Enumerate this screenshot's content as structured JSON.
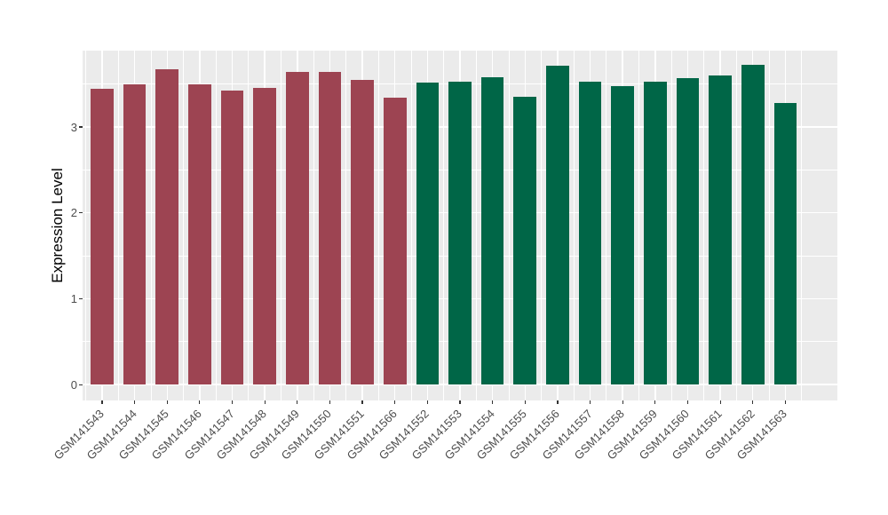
{
  "style": {
    "background": "#FFFFFF",
    "panel_background": "#EBEBEB",
    "grid_color": "#FFFFFF",
    "tick_mark_color": "#333333",
    "tick_label_color": "#4D4D4D",
    "axis_title_color": "#000000"
  },
  "chart_data": {
    "type": "bar",
    "title": "",
    "xlabel": "",
    "ylabel": "Expression Level",
    "ylim": [
      -0.185,
      3.89
    ],
    "yticks": [
      0,
      1,
      2,
      3
    ],
    "minor_yticks": [
      0.5,
      1.5,
      2.5,
      3.5
    ],
    "grid": "on",
    "legend_position": "none",
    "bar_width_fraction": 0.7,
    "categories": [
      "GSM141543",
      "GSM141544",
      "GSM141545",
      "GSM141546",
      "GSM141547",
      "GSM141548",
      "GSM141549",
      "GSM141550",
      "GSM141551",
      "GSM141566",
      "GSM141552",
      "GSM141553",
      "GSM141554",
      "GSM141555",
      "GSM141556",
      "GSM141557",
      "GSM141558",
      "GSM141559",
      "GSM141560",
      "GSM141561",
      "GSM141562",
      "GSM141563"
    ],
    "values": [
      3.45,
      3.5,
      3.67,
      3.5,
      3.42,
      3.46,
      3.64,
      3.64,
      3.55,
      3.34,
      3.52,
      3.53,
      3.58,
      3.35,
      3.71,
      3.53,
      3.48,
      3.53,
      3.57,
      3.6,
      3.72,
      3.28
    ],
    "groups": [
      "group1",
      "group1",
      "group1",
      "group1",
      "group1",
      "group1",
      "group1",
      "group1",
      "group1",
      "group1",
      "group2",
      "group2",
      "group2",
      "group2",
      "group2",
      "group2",
      "group2",
      "group2",
      "group2",
      "group2",
      "group2",
      "group2"
    ],
    "group_colors": {
      "group1": "#9D4452",
      "group2": "#006647"
    }
  }
}
